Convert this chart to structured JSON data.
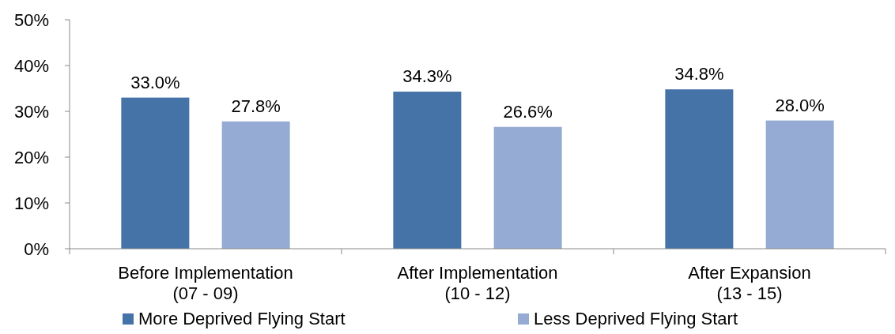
{
  "chart_data": {
    "type": "bar",
    "categories": [
      "Before Implementation\n(07 - 09)",
      "After Implementation\n(10 - 12)",
      "After Expansion\n(13 - 15)"
    ],
    "series": [
      {
        "name": "More Deprived Flying Start",
        "color": "#4572a7",
        "values": [
          33.0,
          34.3,
          34.8
        ],
        "value_labels": [
          "33.0%",
          "34.3%",
          "34.8%"
        ]
      },
      {
        "name": "Less Deprived Flying Start",
        "color": "#95abd4",
        "values": [
          27.8,
          26.6,
          28.0
        ],
        "value_labels": [
          "27.8%",
          "26.6%",
          "28.0%"
        ]
      }
    ],
    "ylim": [
      0,
      50
    ],
    "yticks": [
      {
        "value": 0,
        "label": "0%"
      },
      {
        "value": 10,
        "label": "10%"
      },
      {
        "value": 20,
        "label": "20%"
      },
      {
        "value": 30,
        "label": "30%"
      },
      {
        "value": 40,
        "label": "40%"
      },
      {
        "value": 50,
        "label": "50%"
      }
    ],
    "grid": false,
    "legend": "bottom"
  }
}
